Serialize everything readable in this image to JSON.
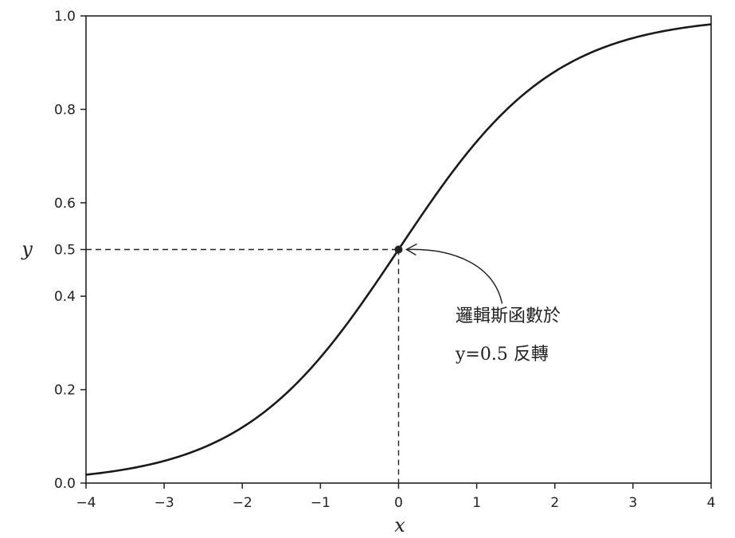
{
  "chart_data": {
    "type": "line",
    "xlabel": "x",
    "ylabel": "y",
    "xlim": [
      -4,
      4
    ],
    "ylim": [
      0,
      1
    ],
    "xticks": [
      -4,
      -3,
      -2,
      -1,
      0,
      1,
      2,
      3,
      4
    ],
    "xtick_labels": [
      "−4",
      "−3",
      "−2",
      "−1",
      "0",
      "1",
      "2",
      "3",
      "4"
    ],
    "yticks": [
      0.0,
      0.2,
      0.4,
      0.5,
      0.6,
      0.8,
      1.0
    ],
    "ytick_labels": [
      "0.0",
      "0.2",
      "0.4",
      "0.5",
      "0.6",
      "0.8",
      "1.0"
    ],
    "grid": false,
    "series": [
      {
        "function": "sigmoid",
        "x": [
          -4,
          -3.5,
          -3,
          -2.5,
          -2,
          -1.5,
          -1,
          -0.5,
          0,
          0.5,
          1,
          1.5,
          2,
          2.5,
          3,
          3.5,
          4
        ],
        "y": [
          0.018,
          0.029,
          0.047,
          0.076,
          0.119,
          0.182,
          0.269,
          0.378,
          0.5,
          0.622,
          0.731,
          0.818,
          0.881,
          0.924,
          0.953,
          0.971,
          0.982
        ]
      }
    ],
    "highlight_point": {
      "x": 0,
      "y": 0.5
    },
    "annotation": {
      "lines": [
        "邏輯斯函數於",
        "y=0.5 反轉"
      ],
      "points_to": {
        "x": 0,
        "y": 0.5
      }
    }
  }
}
